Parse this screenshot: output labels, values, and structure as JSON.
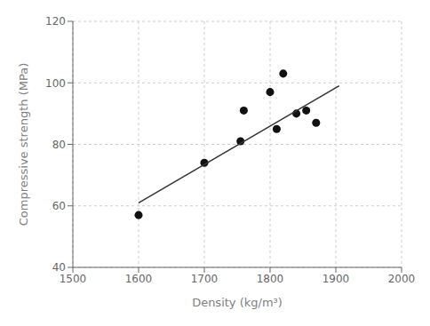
{
  "chart_data": {
    "type": "scatter",
    "xlabel": "Density  (kg/m³)",
    "ylabel": "Compressive strength  (MPa)",
    "xlim": [
      1500,
      2000
    ],
    "ylim": [
      40,
      120
    ],
    "xticks": [
      1500,
      1600,
      1700,
      1800,
      1900,
      2000
    ],
    "yticks": [
      40,
      60,
      80,
      100,
      120
    ],
    "grid": true,
    "series": [
      {
        "type": "scatter",
        "color": "#111111",
        "x": [
          1600,
          1700,
          1755,
          1760,
          1800,
          1810,
          1820,
          1840,
          1855,
          1870
        ],
        "values": [
          57,
          74,
          81,
          91,
          97,
          85,
          103,
          90,
          91,
          87
        ]
      },
      {
        "type": "line",
        "color": "#333333",
        "x": [
          1600,
          1905
        ],
        "values": [
          61,
          99
        ]
      }
    ]
  }
}
